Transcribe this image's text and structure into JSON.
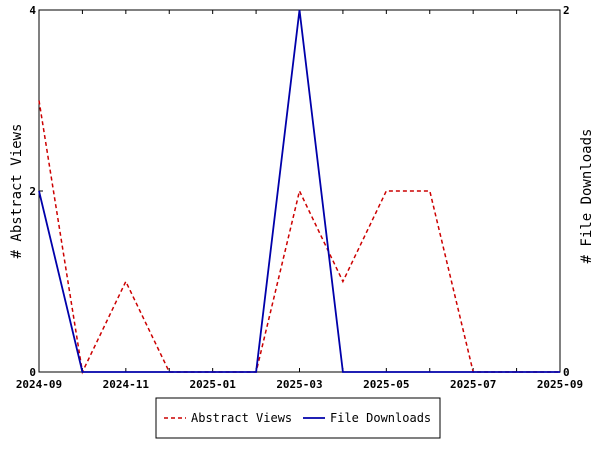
{
  "chart_data": {
    "type": "line",
    "x": [
      "2024-09",
      "2024-10",
      "2024-11",
      "2024-12",
      "2025-01",
      "2025-02",
      "2025-03",
      "2025-04",
      "2025-05",
      "2025-06",
      "2025-07",
      "2025-08",
      "2025-09"
    ],
    "x_tick_labels": [
      "2024-09",
      "2024-11",
      "2025-01",
      "2025-03",
      "2025-05",
      "2025-07",
      "2025-09"
    ],
    "ylabel_left": "# Abstract Views",
    "ylabel_right": "# File Downloads",
    "y_left_ticks": [
      "0",
      "2",
      "4"
    ],
    "y_right_ticks": [
      "0",
      "2"
    ],
    "ylim_left": [
      0,
      4
    ],
    "ylim_right": [
      0,
      2
    ],
    "series": [
      {
        "name": "Abstract Views",
        "axis": "left",
        "color": "#cc0000",
        "style": "dashed",
        "values": [
          3,
          0,
          1,
          0,
          0,
          0,
          2,
          1,
          2,
          2,
          0,
          0,
          0
        ]
      },
      {
        "name": "File Downloads",
        "axis": "right",
        "color": "#0000aa",
        "style": "solid",
        "values": [
          1,
          0,
          0,
          0,
          0,
          0,
          2,
          0,
          0,
          0,
          0,
          0,
          0
        ]
      }
    ],
    "legend_position": "bottom-center",
    "grid": false
  }
}
